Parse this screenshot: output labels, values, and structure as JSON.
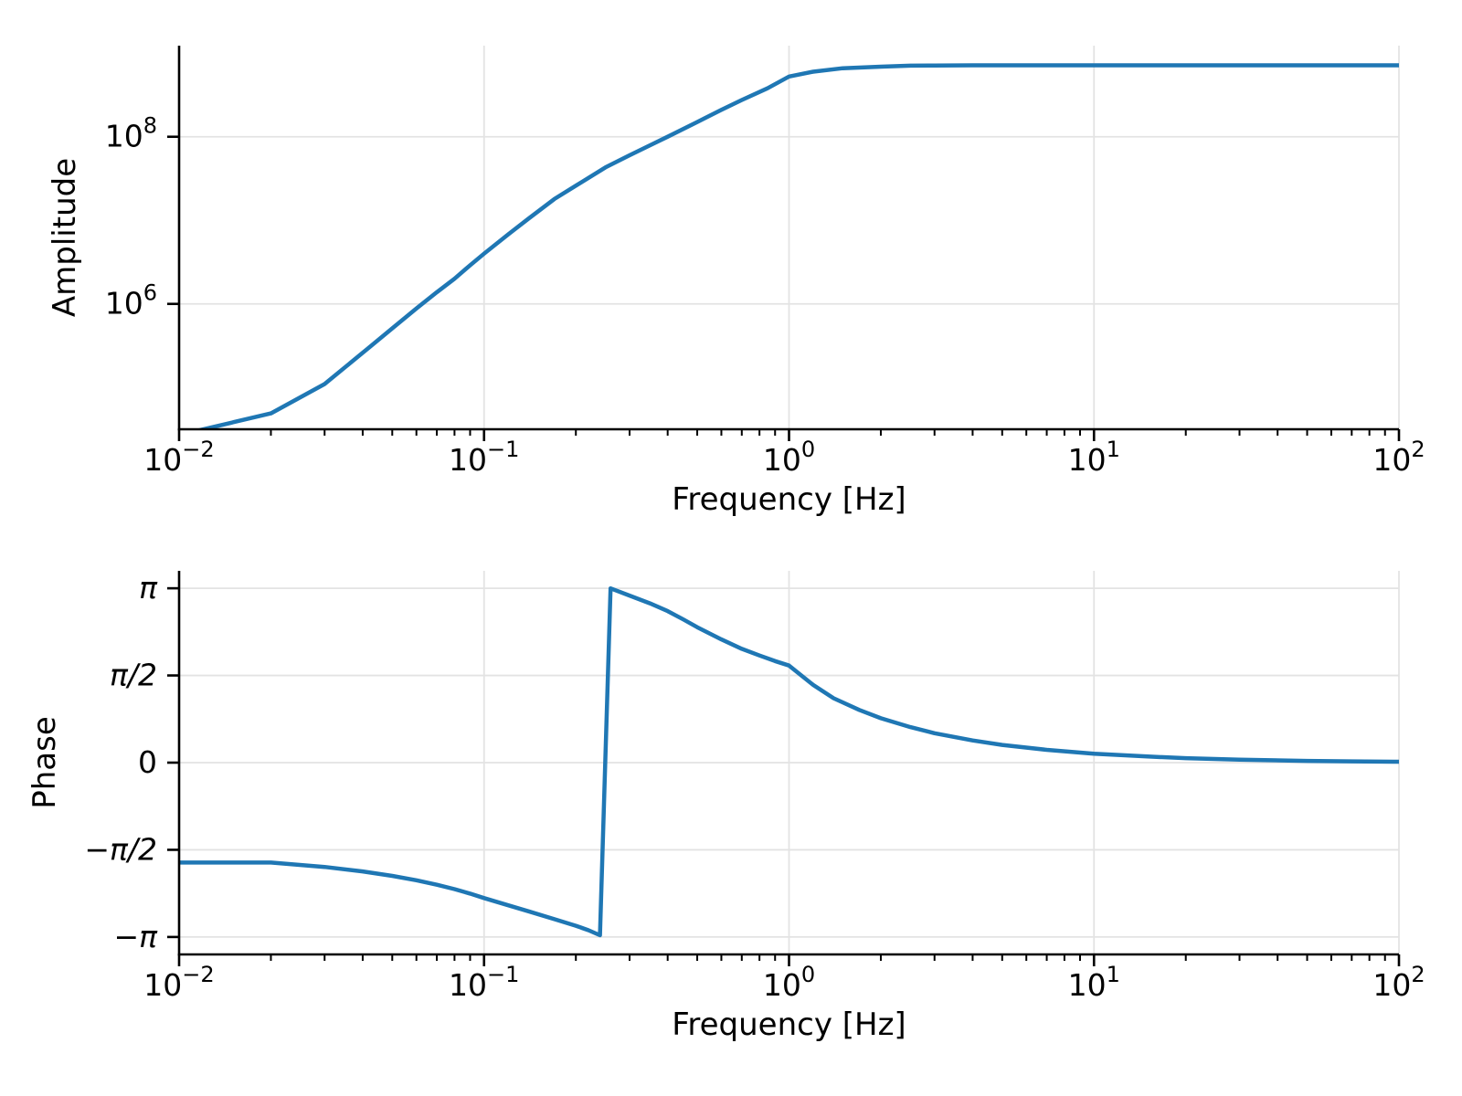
{
  "figure": {
    "background": "#ffffff",
    "line_color": "#1f77b4",
    "grid_color": "#e3e3e3",
    "spine_color": "#000000",
    "text_color": "#000000"
  },
  "chart_data": [
    {
      "id": "amplitude",
      "type": "line",
      "title": "",
      "xlabel": "Frequency [Hz]",
      "ylabel": "Amplitude",
      "xscale": "log",
      "yscale": "log",
      "xlim": [
        0.01,
        100
      ],
      "ylim": [
        31623,
        1230000000
      ],
      "grid": true,
      "legend": null,
      "xticks": {
        "base": "10",
        "values": [
          0.01,
          0.1,
          1,
          10,
          100
        ],
        "exponents": [
          "−2",
          "−1",
          "0",
          "1",
          "2"
        ]
      },
      "yticks": {
        "base": "10",
        "values": [
          1000000,
          100000000
        ],
        "exponents": [
          "6",
          "8"
        ]
      },
      "series": [
        {
          "name": "amplitude",
          "color": "#1f77b4",
          "x": [
            0.01,
            0.02,
            0.03,
            0.04,
            0.05,
            0.06,
            0.07,
            0.08,
            0.09,
            0.1,
            0.12,
            0.14,
            0.17,
            0.2,
            0.25,
            0.3,
            0.35,
            0.4,
            0.5,
            0.6,
            0.7,
            0.85,
            1.0,
            1.2,
            1.5,
            2.0,
            2.5,
            3.0,
            4.0,
            5.0,
            7.0,
            10,
            20,
            50,
            100
          ],
          "y": [
            27000.0,
            49000.0,
            110000.0,
            260000.0,
            510000.0,
            880000.0,
            1380000.0,
            2000000.0,
            2900000.0,
            4000000.0,
            6800000.0,
            10500000.0,
            18000000.0,
            26000000.0,
            43000000.0,
            60000000.0,
            79000000.0,
            100000000.0,
            150000000.0,
            210000000.0,
            275000000.0,
            380000000.0,
            525000000.0,
            600000000.0,
            660000000.0,
            690000000.0,
            708000000.0,
            713000000.0,
            716000000.0,
            716000000.0,
            716000000.0,
            716000000.0,
            716000000.0,
            716000000.0,
            716000000.0
          ]
        }
      ]
    },
    {
      "id": "phase",
      "type": "line",
      "title": "",
      "xlabel": "Frequency [Hz]",
      "ylabel": "Phase",
      "xscale": "log",
      "yscale": "linear",
      "xlim": [
        0.01,
        100
      ],
      "ylim": [
        -3.456,
        3.456
      ],
      "grid": true,
      "legend": null,
      "xticks": {
        "base": "10",
        "values": [
          0.01,
          0.1,
          1,
          10,
          100
        ],
        "exponents": [
          "−2",
          "−1",
          "0",
          "1",
          "2"
        ]
      },
      "yticks": {
        "values": [
          3.14159,
          1.5708,
          0,
          -1.5708,
          -3.14159
        ],
        "labels": [
          "π",
          "π/2",
          "0",
          "−π/2",
          "−π"
        ]
      },
      "series": [
        {
          "name": "phase",
          "color": "#1f77b4",
          "x": [
            0.01,
            0.02,
            0.03,
            0.04,
            0.05,
            0.06,
            0.07,
            0.08,
            0.09,
            0.1,
            0.12,
            0.14,
            0.17,
            0.2,
            0.22,
            0.24,
            0.26,
            0.3,
            0.35,
            0.4,
            0.45,
            0.5,
            0.6,
            0.7,
            0.8,
            0.9,
            1.0,
            1.2,
            1.4,
            1.7,
            2.0,
            2.5,
            3.0,
            4.0,
            5.0,
            7.0,
            10,
            15,
            20,
            30,
            50,
            70,
            100
          ],
          "y": [
            -1.8,
            -1.8,
            -1.88,
            -1.96,
            -2.04,
            -2.12,
            -2.2,
            -2.28,
            -2.36,
            -2.44,
            -2.57,
            -2.68,
            -2.82,
            -2.94,
            -3.02,
            -3.11,
            3.14,
            3.01,
            2.87,
            2.73,
            2.58,
            2.44,
            2.22,
            2.05,
            1.93,
            1.83,
            1.75,
            1.4,
            1.16,
            0.95,
            0.8,
            0.64,
            0.53,
            0.4,
            0.32,
            0.23,
            0.16,
            0.11,
            0.08,
            0.053,
            0.032,
            0.023,
            0.016
          ]
        }
      ]
    }
  ]
}
